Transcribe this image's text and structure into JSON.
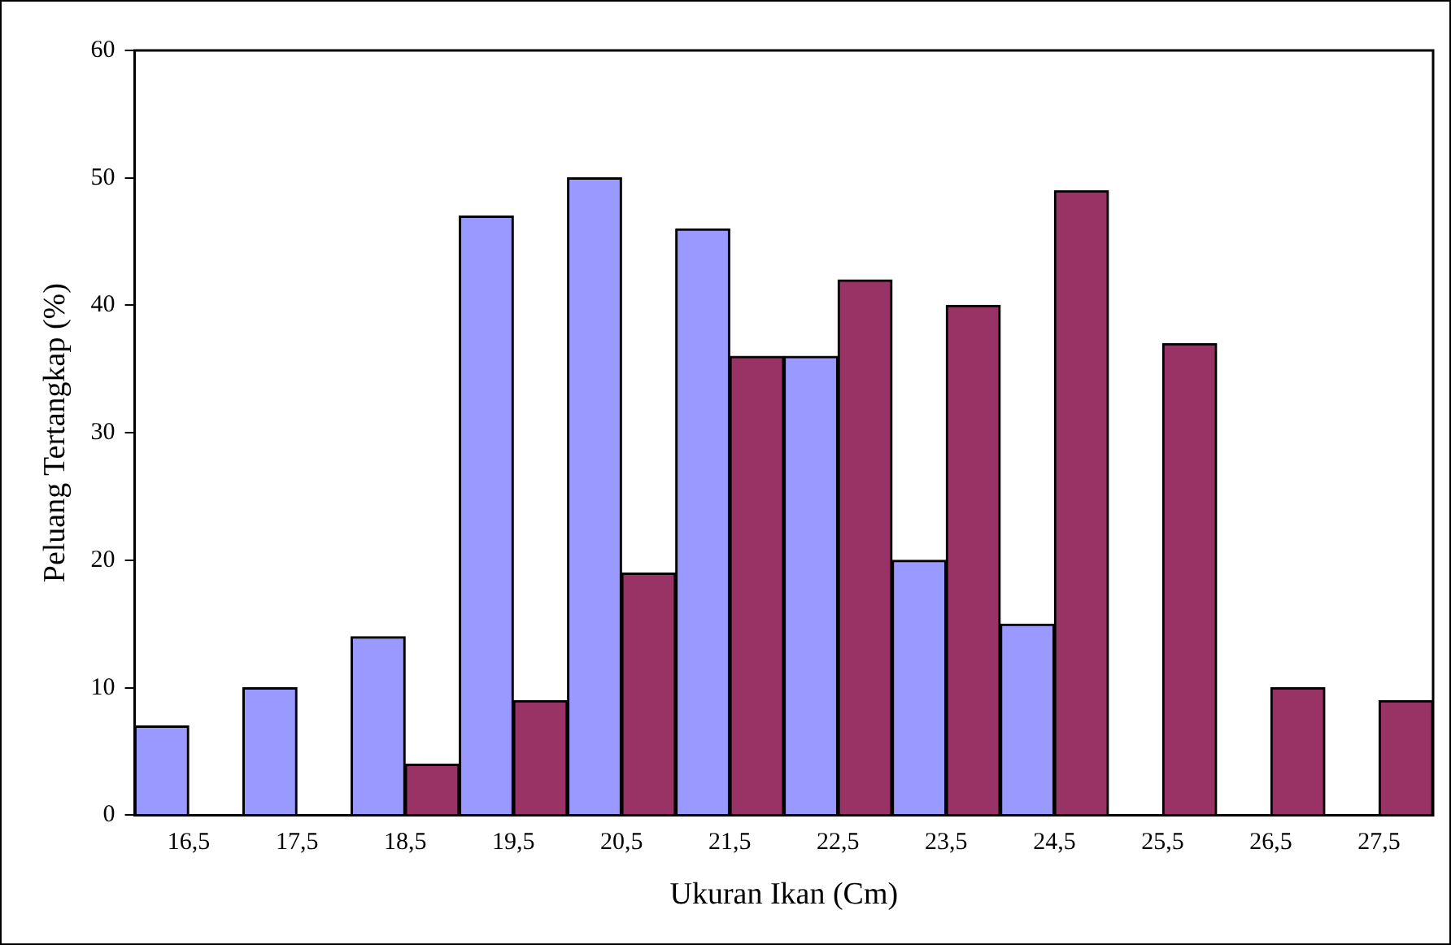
{
  "chart_data": {
    "type": "bar",
    "xlabel": "Ukuran Ikan (Cm)",
    "ylabel": "Peluang Tertangkap (%)",
    "categories": [
      "16,5",
      "17,5",
      "18,5",
      "19,5",
      "20,5",
      "21,5",
      "22,5",
      "23,5",
      "24,5",
      "25,5",
      "26,5",
      "27,5"
    ],
    "series": [
      {
        "color": "#9999ff",
        "values": [
          7,
          10,
          14,
          47,
          50,
          46,
          36,
          20,
          15,
          null,
          null,
          null
        ]
      },
      {
        "color": "#993366",
        "values": [
          null,
          null,
          4,
          9,
          19,
          36,
          42,
          40,
          49,
          37,
          10,
          9
        ]
      }
    ],
    "ylim": [
      0,
      60
    ],
    "yticks": [
      0,
      10,
      20,
      30,
      40,
      50,
      60
    ],
    "grid": false,
    "legend": false
  }
}
